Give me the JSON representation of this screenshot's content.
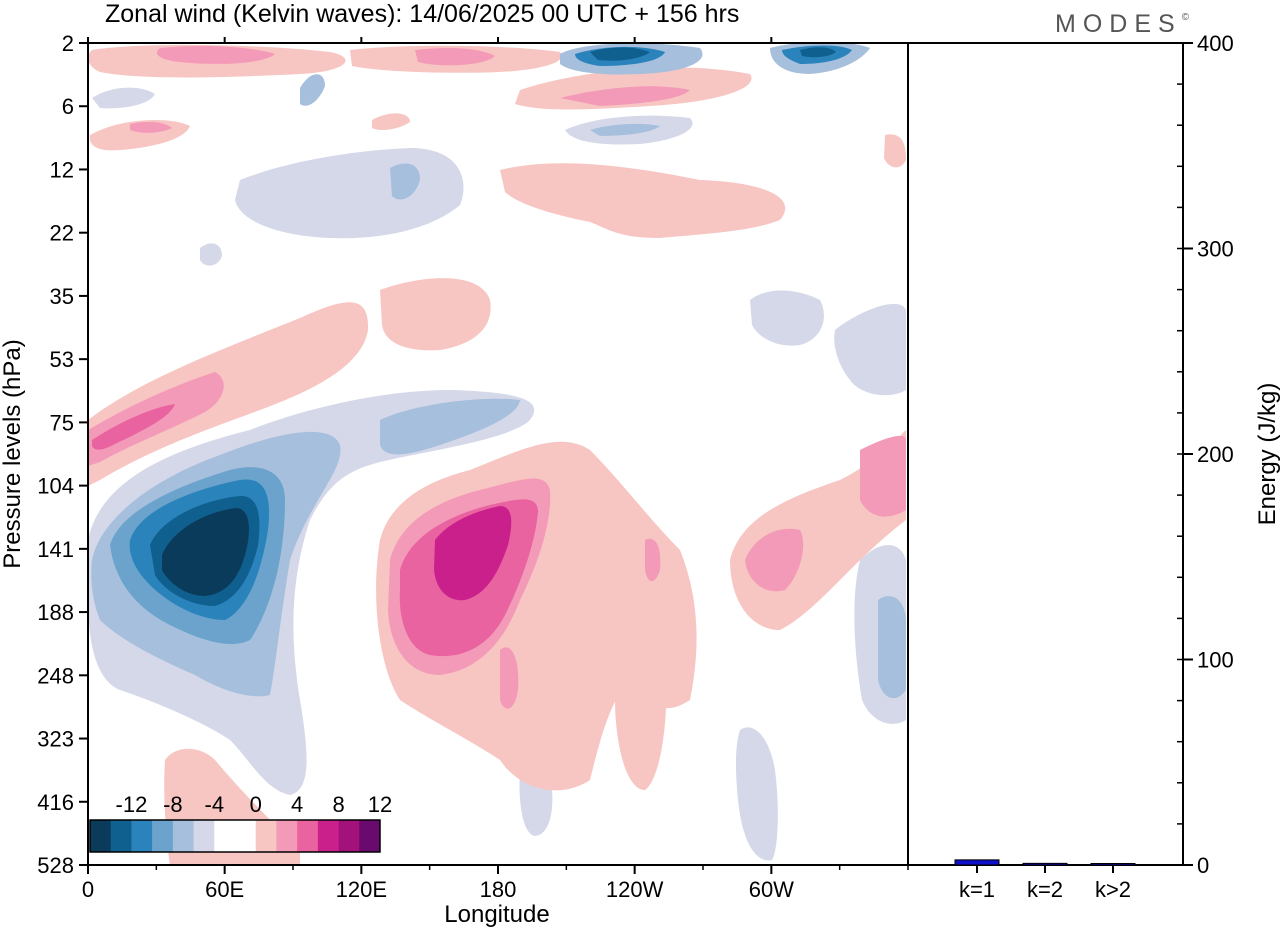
{
  "title": "Zonal wind (Kelvin waves):  14/06/2025  00 UTC  + 156 hrs",
  "brand": "MODES",
  "brand_mark": "©",
  "chart_data": [
    {
      "type": "heatmap",
      "xlabel": "Longitude",
      "ylabel": "Pressure levels (hPa)",
      "x_ticks": [
        "0",
        "60E",
        "120E",
        "180",
        "120W",
        "60W"
      ],
      "x_tick_values": [
        0,
        60,
        120,
        180,
        240,
        300
      ],
      "xlim": [
        0,
        360
      ],
      "y_ticks": [
        "2",
        "6",
        "12",
        "22",
        "35",
        "53",
        "75",
        "104",
        "141",
        "188",
        "248",
        "323",
        "416",
        "528"
      ],
      "y_scale": "pressure levels (top 2 hPa, bottom 528 hPa)",
      "colorbar": {
        "labels": [
          "-12",
          "-8",
          "-4",
          "0",
          "4",
          "8",
          "12"
        ],
        "colors": [
          "#0b3b5b",
          "#0f5f8f",
          "#2a83bb",
          "#6ba3cc",
          "#a6bfdc",
          "#d5d8e8",
          "#ffffff",
          "#ffffff",
          "#f7c6c2",
          "#f39ab8",
          "#e8639f",
          "#c9208c",
          "#a2127a",
          "#6b0a6e"
        ]
      },
      "features": [
        {
          "sign": "negative",
          "peak": "<-12",
          "lon_center": 45,
          "level_center": "141"
        },
        {
          "sign": "positive",
          "peak": ">8",
          "lon_center": 165,
          "level_center": "141"
        },
        {
          "sign": "positive",
          "peak": "8",
          "lon_center": 20,
          "level_center": "75-104"
        },
        {
          "sign": "negative",
          "peak": "-8",
          "lon_center": 235,
          "level_center": "2"
        },
        {
          "sign": "positive",
          "peak": "4",
          "lon_center": 305,
          "level_center": "141"
        }
      ]
    },
    {
      "type": "bar",
      "ylabel": "Energy (J/kg)",
      "ylim": [
        0,
        400
      ],
      "y_ticks": [
        "0",
        "100",
        "200",
        "300",
        "400"
      ],
      "categories": [
        "k=1",
        "k=2",
        "k>2"
      ],
      "values": [
        2.5,
        0.8,
        0.6
      ],
      "color": "#1010c8"
    }
  ]
}
